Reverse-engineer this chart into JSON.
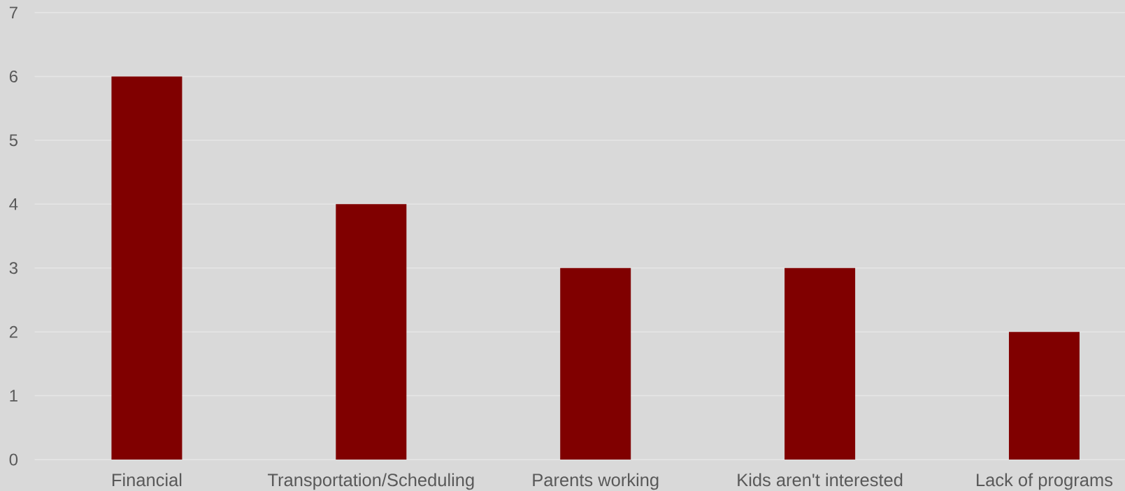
{
  "chart_data": {
    "type": "bar",
    "categories": [
      "Financial",
      "Transportation/Scheduling",
      "Parents working",
      "Kids aren't interested",
      "Lack of programs"
    ],
    "values": [
      6,
      4,
      3,
      3,
      2
    ],
    "color": "#800000",
    "ylim": [
      0,
      7
    ],
    "yticks": [
      0,
      1,
      2,
      3,
      4,
      5,
      6,
      7
    ],
    "grid": "y"
  }
}
